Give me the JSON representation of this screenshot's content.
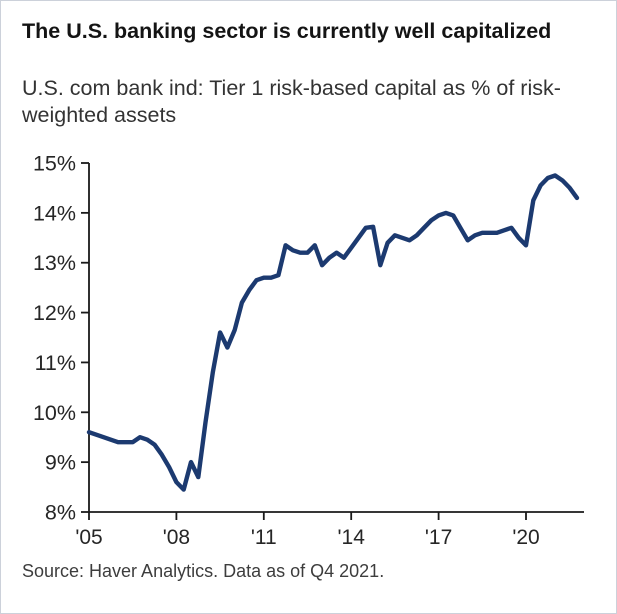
{
  "header": {
    "title": "The U.S. banking sector is currently well capitalized",
    "subtitle": "U.S. com bank ind: Tier 1 risk-based capital as % of risk-weighted assets"
  },
  "footer": {
    "source": "Source: Haver Analytics. Data as of Q4 2021."
  },
  "chart_data": {
    "type": "line",
    "title": "The U.S. banking sector is currently well capitalized",
    "subtitle": "U.S. com bank ind: Tier 1 risk-based capital as % of risk-weighted assets",
    "xlabel": "",
    "ylabel": "",
    "grid": false,
    "legend_position": "none",
    "ylim": [
      8,
      15
    ],
    "y_ticks": [
      {
        "label": "8%",
        "value": 8
      },
      {
        "label": "9%",
        "value": 9
      },
      {
        "label": "10%",
        "value": 10
      },
      {
        "label": "11%",
        "value": 11
      },
      {
        "label": "12%",
        "value": 12
      },
      {
        "label": "13%",
        "value": 13
      },
      {
        "label": "14%",
        "value": 14
      },
      {
        "label": "15%",
        "value": 15
      }
    ],
    "x_ticks": [
      {
        "label": "'05",
        "year": 2005
      },
      {
        "label": "'08",
        "year": 2008
      },
      {
        "label": "'11",
        "year": 2011
      },
      {
        "label": "'14",
        "year": 2014
      },
      {
        "label": "'17",
        "year": 2017
      },
      {
        "label": "'20",
        "year": 2020
      }
    ],
    "x_start": "2005Q1",
    "x_end": "2021Q4",
    "frequency": "quarterly",
    "line_color": "#1c3a70",
    "axis_color": "#1a1a1a",
    "tick_label_color": "#262626",
    "series": [
      {
        "name": "Tier 1 risk-based capital as % of risk-weighted assets",
        "values": [
          9.6,
          9.55,
          9.5,
          9.45,
          9.4,
          9.4,
          9.4,
          9.5,
          9.45,
          9.35,
          9.15,
          8.9,
          8.6,
          8.45,
          9.0,
          8.7,
          9.8,
          10.8,
          11.6,
          11.3,
          11.65,
          12.2,
          12.45,
          12.65,
          12.7,
          12.7,
          12.75,
          13.35,
          13.25,
          13.2,
          13.2,
          13.35,
          12.95,
          13.1,
          13.2,
          13.1,
          13.3,
          13.5,
          13.7,
          13.72,
          12.95,
          13.4,
          13.55,
          13.5,
          13.45,
          13.55,
          13.7,
          13.85,
          13.95,
          14.0,
          13.95,
          13.7,
          13.45,
          13.55,
          13.6,
          13.6,
          13.6,
          13.65,
          13.7,
          13.5,
          13.35,
          14.25,
          14.55,
          14.7,
          14.75,
          14.65,
          14.5,
          14.3
        ]
      }
    ]
  }
}
